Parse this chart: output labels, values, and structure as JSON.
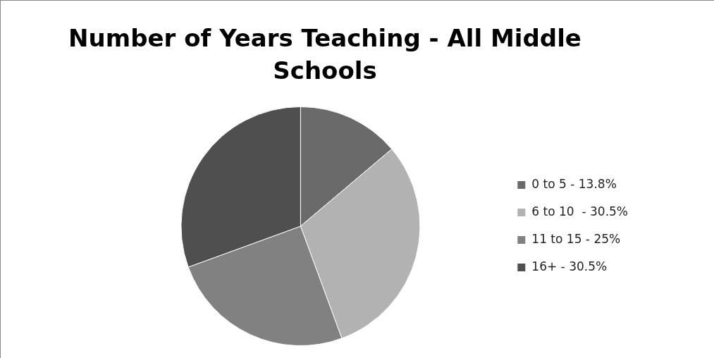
{
  "chart_data": {
    "type": "pie",
    "title": "Number of Years Teaching - All Middle Schools",
    "categories": [
      "0 to 5 - 13.8%",
      "6 to 10  - 30.5%",
      "11 to 15 - 25%",
      "16+ - 30.5%"
    ],
    "values": [
      13.8,
      30.5,
      25,
      30.5
    ],
    "colors": [
      "#6a6a6a",
      "#b2b2b2",
      "#818181",
      "#4f4f4f"
    ],
    "legend": "right"
  }
}
